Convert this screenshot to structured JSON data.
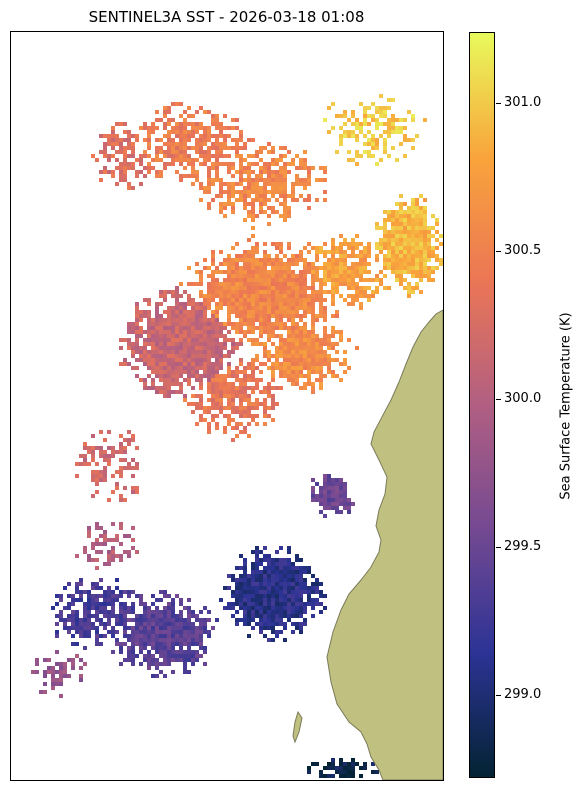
{
  "title": "SENTINEL3A SST - 2026-03-18 01:08",
  "colorbar": {
    "label": "Sea Surface Temperature (K)",
    "ticks": [
      "299.0",
      "299.5",
      "300.0",
      "300.5",
      "301.0"
    ],
    "tick_values": [
      299.0,
      299.5,
      300.0,
      300.5,
      301.0
    ],
    "range": [
      298.72,
      301.24
    ],
    "colormap": "thermal",
    "colors": [
      "#042333",
      "#2c3395",
      "#744992",
      "#b15f82",
      "#eb7655",
      "#f9a43b",
      "#e8fa5b"
    ]
  },
  "map": {
    "land_color": "#c0c080",
    "coast_color": "#7a7a5a",
    "background": "#ffffff"
  }
}
